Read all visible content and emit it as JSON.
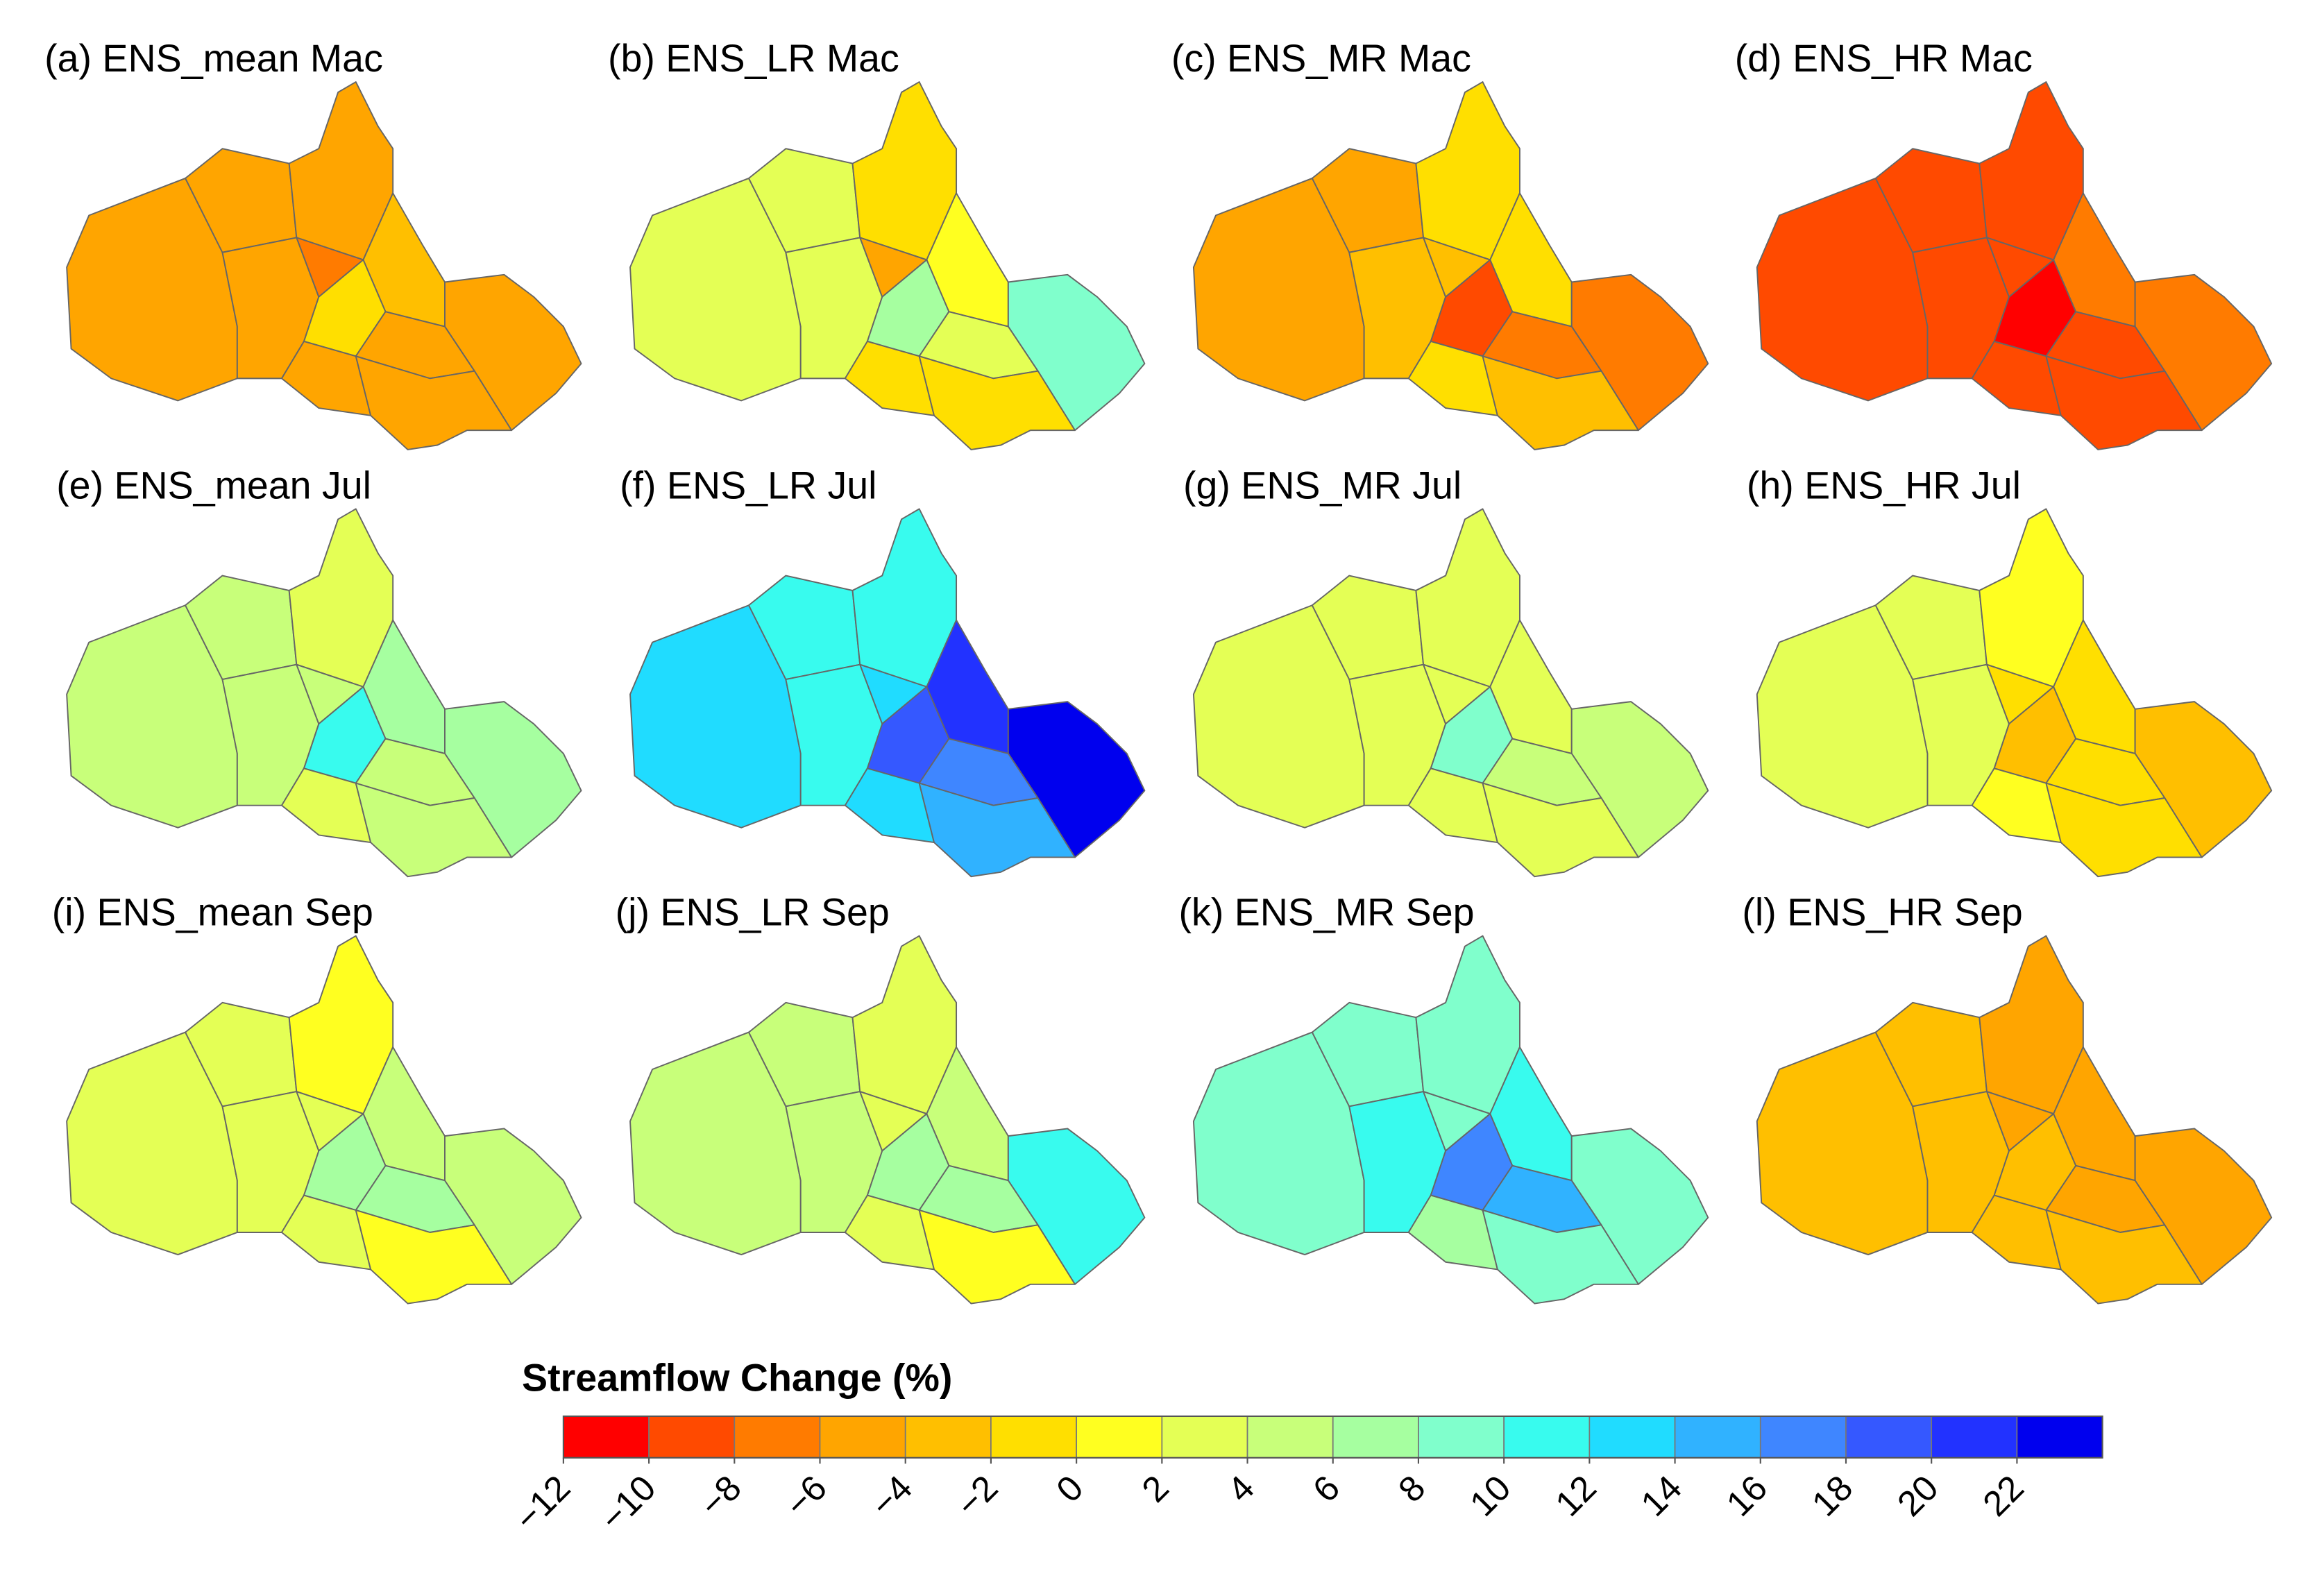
{
  "panels": [
    {
      "title": "(a) ENS_mean Mac",
      "values": [
        -5,
        -5,
        -5,
        -5,
        -7,
        -3,
        -5,
        -1,
        -5,
        -5,
        -5
      ]
    },
    {
      "title": "(b) ENS_LR Mac",
      "values": [
        3,
        3,
        3,
        -1,
        -5,
        1,
        9,
        7,
        -1,
        3,
        -1
      ]
    },
    {
      "title": "(c) ENS_MR Mac",
      "values": [
        -5,
        -5,
        -3,
        -1,
        -3,
        -1,
        -7,
        -9,
        -1,
        -7,
        -3
      ]
    },
    {
      "title": "(d) ENS_HR Mac",
      "values": [
        -9,
        -9,
        -9,
        -9,
        -9,
        -7,
        -7,
        -11,
        -9,
        -9,
        -9
      ]
    },
    {
      "title": "(e) ENS_mean Jul",
      "values": [
        5,
        5,
        5,
        3,
        5,
        7,
        7,
        11,
        3,
        5,
        5
      ]
    },
    {
      "title": "(f) ENS_LR Jul",
      "values": [
        13,
        11,
        11,
        11,
        13,
        21,
        23,
        19,
        13,
        17,
        15
      ]
    },
    {
      "title": "(g) ENS_MR Jul",
      "values": [
        3,
        3,
        3,
        3,
        3,
        3,
        5,
        9,
        3,
        5,
        3
      ]
    },
    {
      "title": "(h) ENS_HR Jul",
      "values": [
        3,
        3,
        3,
        1,
        -1,
        -1,
        -3,
        -3,
        1,
        -1,
        -1
      ]
    },
    {
      "title": "(i) ENS_mean Sep",
      "values": [
        3,
        3,
        3,
        1,
        3,
        5,
        5,
        7,
        3,
        7,
        1
      ]
    },
    {
      "title": "(j) ENS_LR Sep",
      "values": [
        5,
        5,
        5,
        3,
        3,
        5,
        11,
        7,
        3,
        7,
        1
      ]
    },
    {
      "title": "(k) ENS_MR Sep",
      "values": [
        9,
        9,
        11,
        9,
        9,
        11,
        9,
        17,
        7,
        15,
        9
      ]
    },
    {
      "title": "(l) ENS_HR Sep",
      "values": [
        -3,
        -3,
        -3,
        -5,
        -5,
        -5,
        -5,
        -3,
        -3,
        -5,
        -3
      ]
    }
  ],
  "colorbar": {
    "title": "Streamflow Change (%)",
    "clim": [
      -12,
      24
    ],
    "colors": [
      "#ff0000",
      "#ff4a00",
      "#ff7b00",
      "#ffa500",
      "#ffbf00",
      "#ffdf00",
      "#ffff20",
      "#e4ff55",
      "#c8ff7a",
      "#a6ffa0",
      "#80ffcc",
      "#38fbee",
      "#20dcff",
      "#30b2ff",
      "#3f86ff",
      "#3558ff",
      "#2232ff",
      "#0000ee"
    ],
    "ticks": [
      {
        "value": -12,
        "label": "−12"
      },
      {
        "value": -10,
        "label": "−10"
      },
      {
        "value": -8,
        "label": "−8"
      },
      {
        "value": -6,
        "label": "−6"
      },
      {
        "value": -4,
        "label": "−4"
      },
      {
        "value": -2,
        "label": "−2"
      },
      0,
      2,
      4,
      6,
      8,
      10,
      12,
      14,
      16,
      18,
      20,
      22
    ]
  }
}
